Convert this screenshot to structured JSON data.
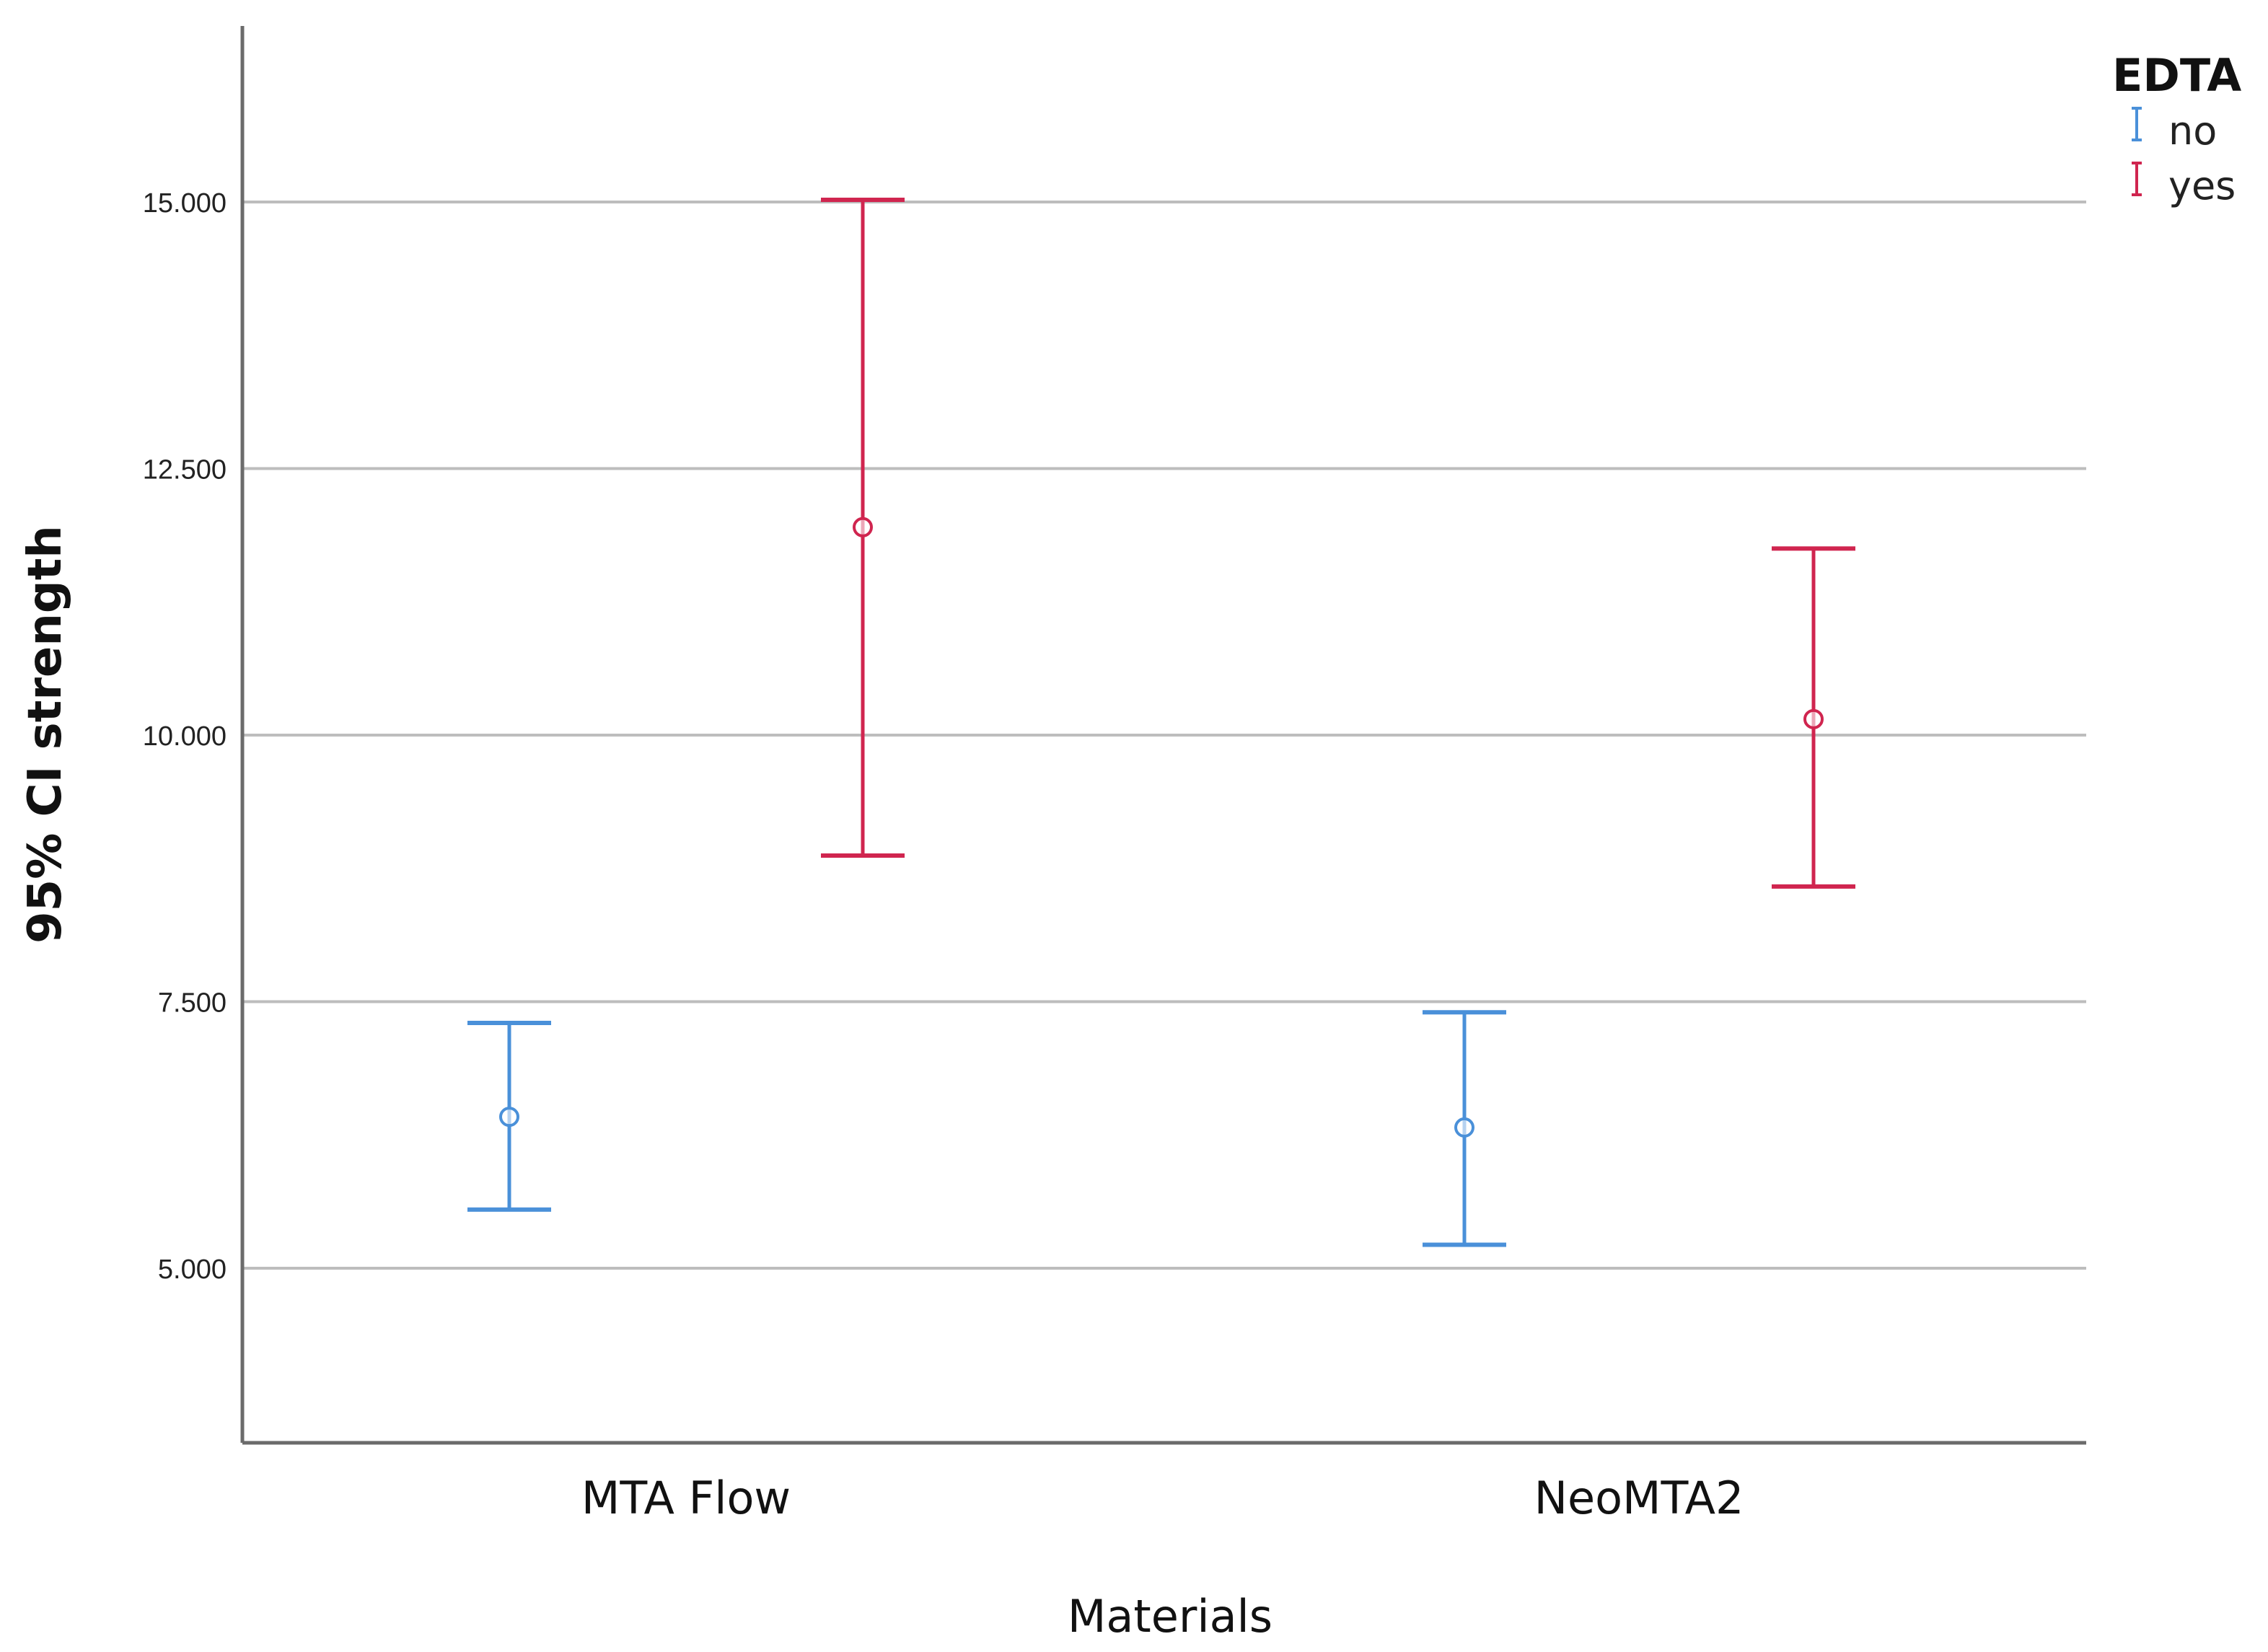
{
  "chart_data": {
    "type": "errorbar",
    "title": "",
    "xlabel": "Materials",
    "ylabel": "95% CI strength",
    "ylim": [
      3.5,
      16.8
    ],
    "yticks": [
      5.0,
      7.5,
      10.0,
      12.5,
      15.0
    ],
    "ytick_labels": [
      "5.000",
      "7.500",
      "10.000",
      "12.500",
      "15.000"
    ],
    "grid": true,
    "categories": [
      "MTA Flow",
      "NeoMTA2"
    ],
    "legend": {
      "title": "EDTA",
      "position": "top-right"
    },
    "series": [
      {
        "name": "no",
        "color": "#4a90d9",
        "points": [
          {
            "category": "MTA Flow",
            "mean": 6.42,
            "lower": 5.55,
            "upper": 7.3
          },
          {
            "category": "NeoMTA2",
            "mean": 6.32,
            "lower": 5.22,
            "upper": 7.4
          }
        ]
      },
      {
        "name": "yes",
        "color": "#d0254f",
        "points": [
          {
            "category": "MTA Flow",
            "mean": 11.95,
            "lower": 8.87,
            "upper": 15.02
          },
          {
            "category": "NeoMTA2",
            "mean": 10.15,
            "lower": 8.58,
            "upper": 11.75
          }
        ]
      }
    ]
  }
}
